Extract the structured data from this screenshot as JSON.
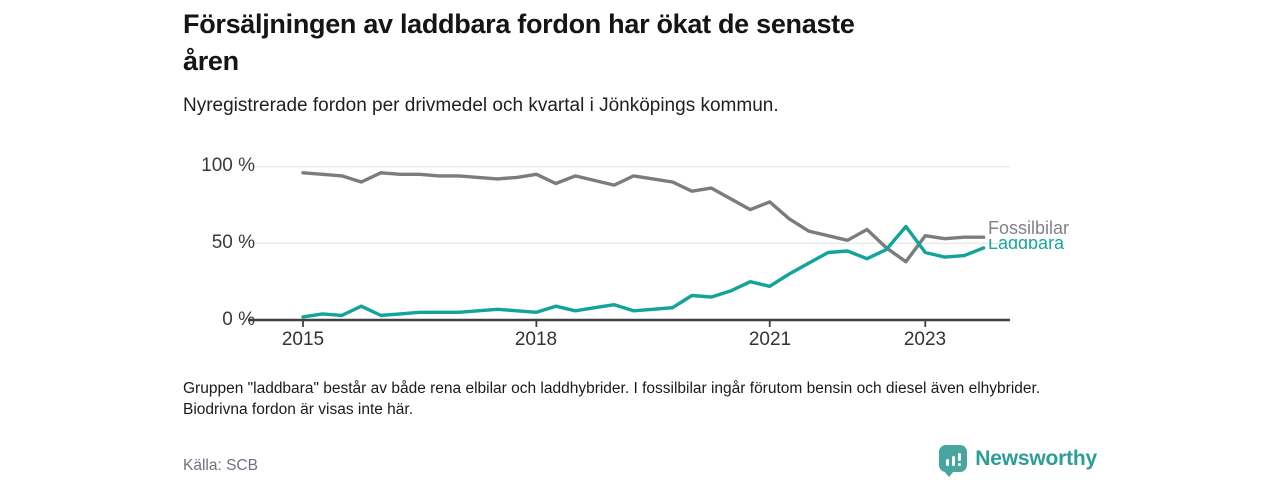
{
  "header": {
    "title": "Försäljningen av laddbara fordon har ökat de senaste åren",
    "subtitle": "Nyregistrerade fordon per drivmedel och kvartal i Jönköpings kommun."
  },
  "chart_data": {
    "type": "line",
    "unit": "%",
    "ylim": [
      0,
      100
    ],
    "grid": true,
    "legend_position": "end-of-line",
    "y_ticks": [
      {
        "label": "100 %",
        "value": 100
      },
      {
        "label": "50 %",
        "value": 50
      },
      {
        "label": "0 %",
        "value": 0
      }
    ],
    "x_ticks": [
      {
        "label": "2015",
        "quarter_index": 0
      },
      {
        "label": "2018",
        "quarter_index": 12
      },
      {
        "label": "2021",
        "quarter_index": 24
      },
      {
        "label": "2023",
        "quarter_index": 32
      }
    ],
    "x_quarters": [
      "2015-Q1",
      "2015-Q2",
      "2015-Q3",
      "2015-Q4",
      "2016-Q1",
      "2016-Q2",
      "2016-Q3",
      "2016-Q4",
      "2017-Q1",
      "2017-Q2",
      "2017-Q3",
      "2017-Q4",
      "2018-Q1",
      "2018-Q2",
      "2018-Q3",
      "2018-Q4",
      "2019-Q1",
      "2019-Q2",
      "2019-Q3",
      "2019-Q4",
      "2020-Q1",
      "2020-Q2",
      "2020-Q3",
      "2020-Q4",
      "2021-Q1",
      "2021-Q2",
      "2021-Q3",
      "2021-Q4",
      "2022-Q1",
      "2022-Q2",
      "2022-Q3",
      "2022-Q4",
      "2023-Q1",
      "2023-Q2",
      "2023-Q3",
      "2023-Q4"
    ],
    "series": [
      {
        "name": "Fossilbilar",
        "color": "#7b7c80",
        "label_color": "#818286",
        "values": [
          96,
          95,
          94,
          90,
          96,
          95,
          95,
          94,
          94,
          93,
          92,
          93,
          95,
          89,
          94,
          91,
          88,
          94,
          92,
          90,
          84,
          86,
          79,
          72,
          77,
          66,
          58,
          55,
          52,
          59,
          47,
          38,
          55,
          53,
          54,
          54
        ]
      },
      {
        "name": "Laddbara",
        "color": "#12a49a",
        "label_color": "#1ba69b",
        "values": [
          2,
          4,
          3,
          9,
          3,
          4,
          5,
          5,
          5,
          6,
          7,
          6,
          5,
          9,
          6,
          8,
          10,
          6,
          7,
          8,
          16,
          15,
          19,
          25,
          22,
          30,
          37,
          44,
          45,
          40,
          46,
          61,
          44,
          41,
          42,
          47
        ]
      }
    ]
  },
  "note": "Gruppen \"laddbara\" består av både rena elbilar och laddhybrider. I fossilbilar ingår förutom bensin och diesel även elhybrider. Biodrivna fordon är visas inte här.",
  "footer": {
    "source": "Källa: SCB",
    "brand": "Newsworthy"
  }
}
